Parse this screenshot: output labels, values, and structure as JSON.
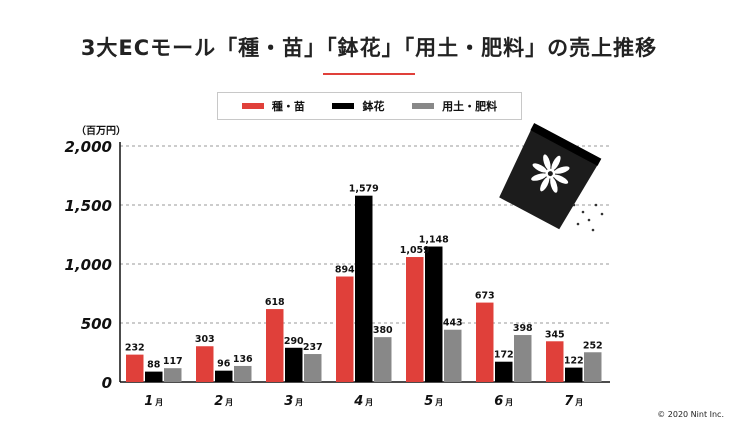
{
  "chart_data": {
    "type": "bar",
    "title": "3大ECモール「種・苗」「鉢花」「用土・肥料」の売上推移",
    "xlabel": "",
    "ylabel": "（百万円）",
    "categories": [
      "1月",
      "2月",
      "3月",
      "4月",
      "5月",
      "6月",
      "7月"
    ],
    "ylim": [
      0,
      2000
    ],
    "yticks": [
      "2,000",
      "1,500",
      "1,000",
      "500",
      "0"
    ],
    "grid": true,
    "legend_position": "top",
    "series": [
      {
        "name": "種・苗",
        "color": "#e0403a",
        "values": [
          232,
          303,
          618,
          894,
          1059,
          673,
          345
        ],
        "labels": [
          "232",
          "303",
          "618",
          "894",
          "1,059",
          "673",
          "345"
        ]
      },
      {
        "name": "鉢花",
        "color": "#000000",
        "values": [
          88,
          96,
          290,
          1579,
          1148,
          172,
          122
        ],
        "labels": [
          "88",
          "96",
          "290",
          "1,579",
          "1,148",
          "172",
          "122"
        ]
      },
      {
        "name": "用土・肥料",
        "color": "#888888",
        "values": [
          117,
          136,
          237,
          380,
          443,
          398,
          252
        ],
        "labels": [
          "117",
          "136",
          "237",
          "380",
          "443",
          "398",
          "252"
        ]
      }
    ],
    "annotations": [
      "© 2020 Nint Inc."
    ]
  }
}
